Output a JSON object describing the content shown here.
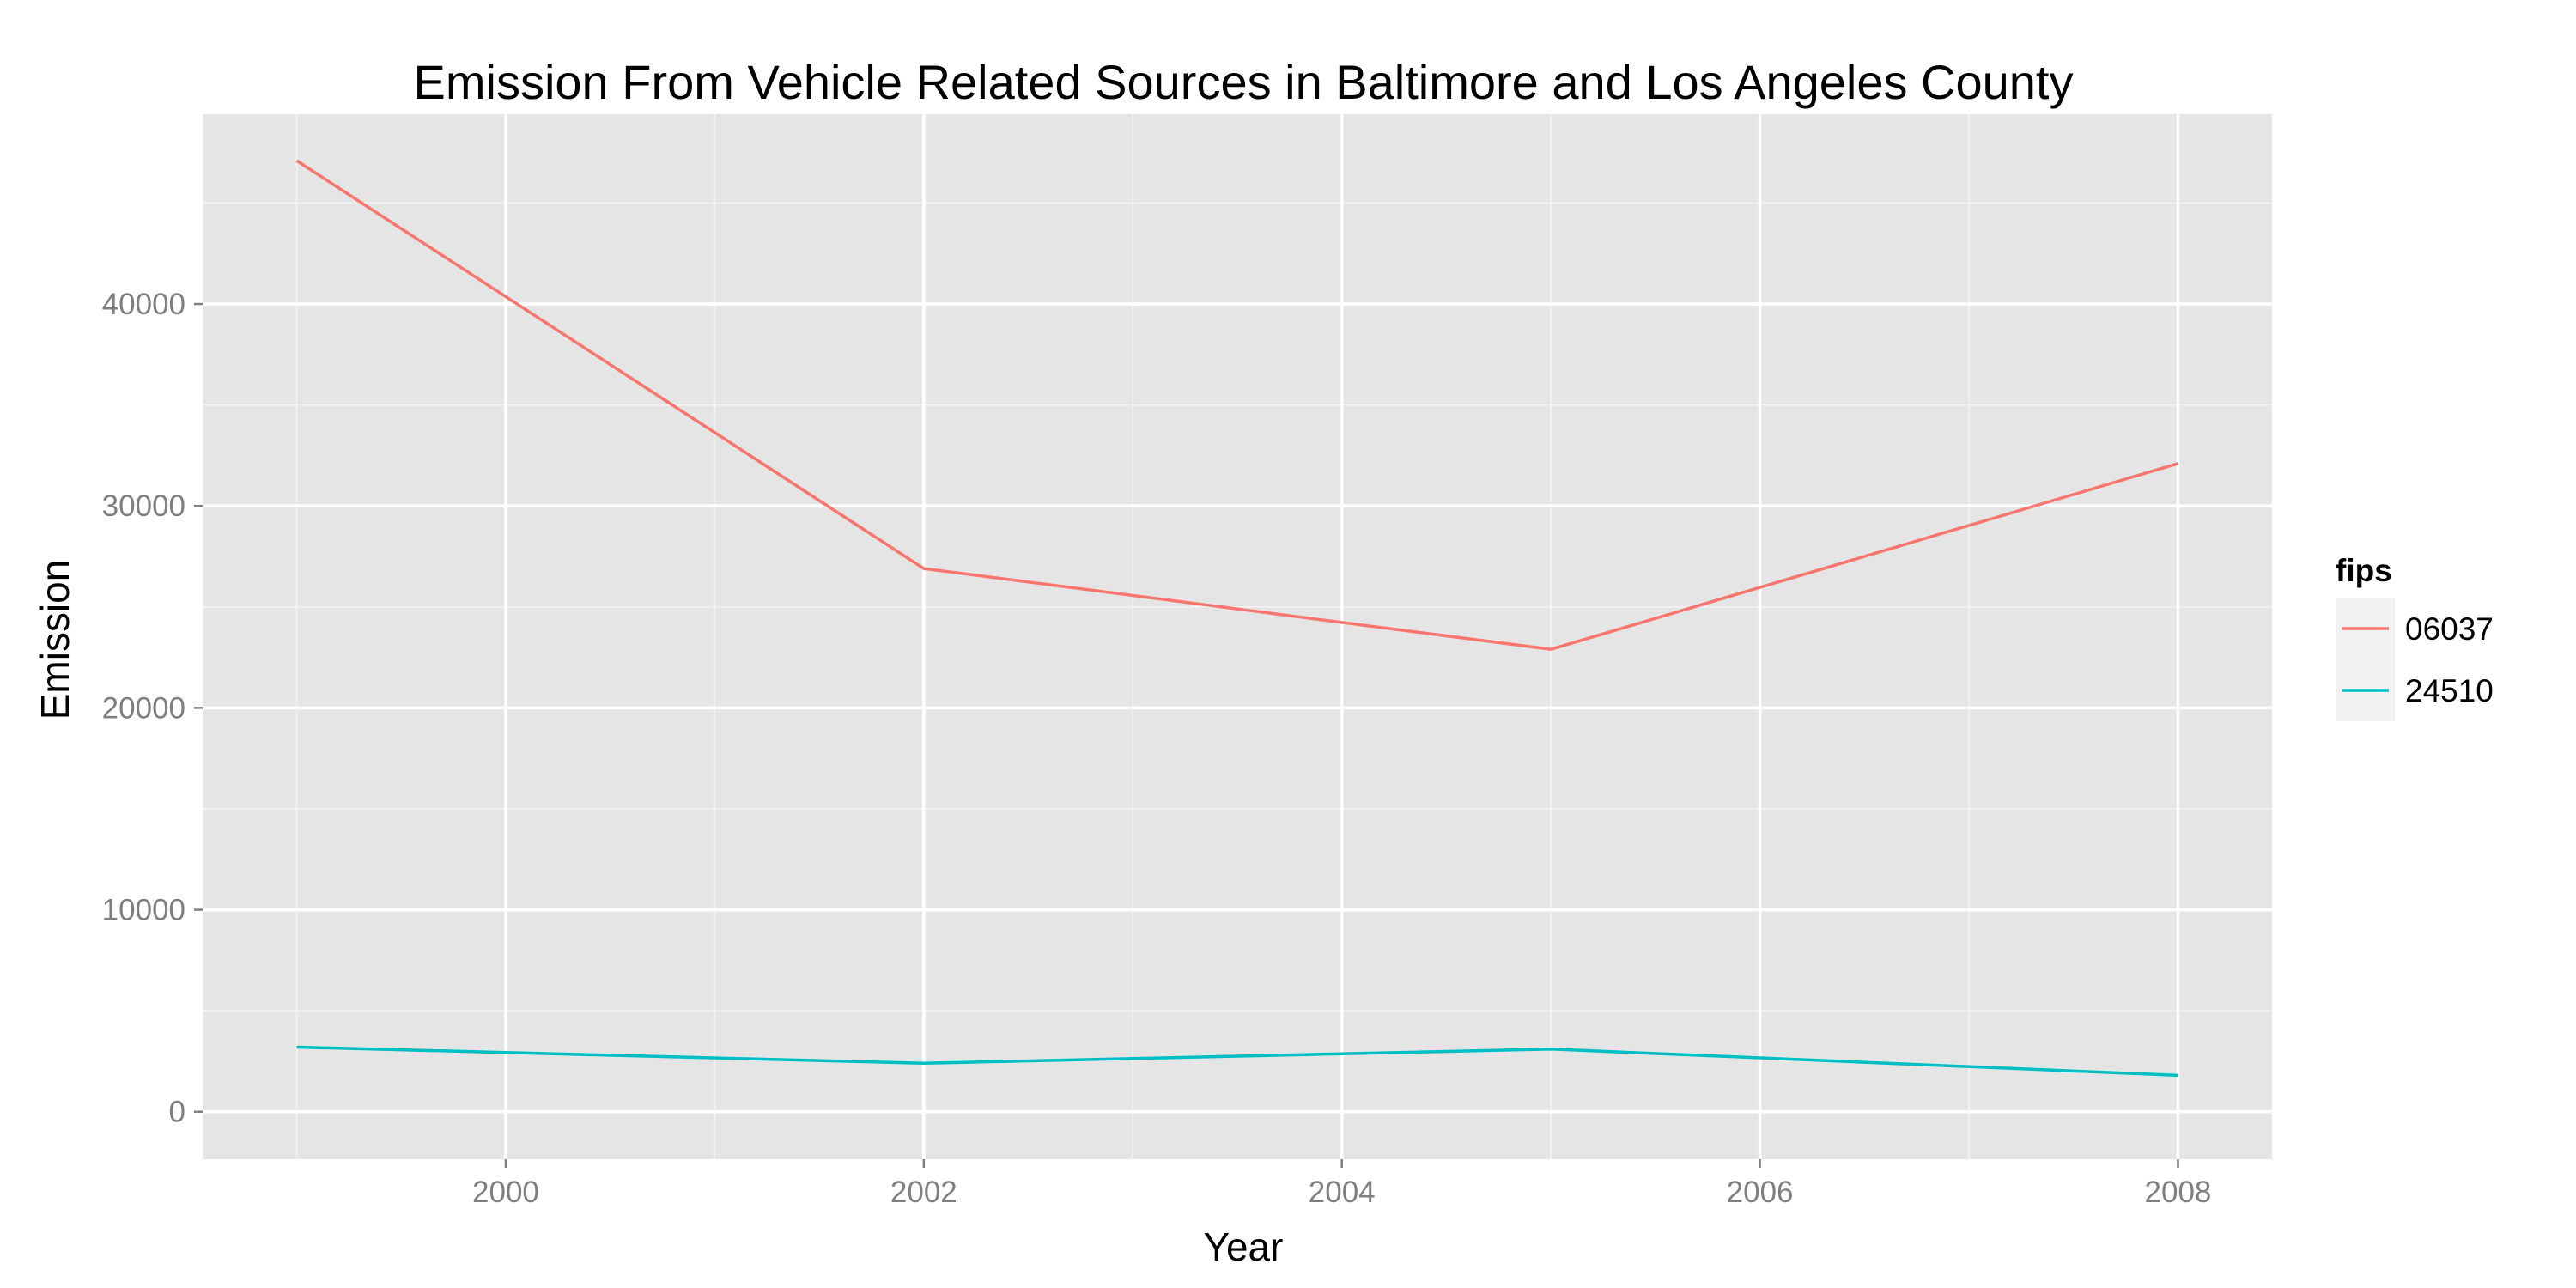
{
  "chart_data": {
    "type": "line",
    "title": "Emission From Vehicle Related Sources in Baltimore and Los Angeles County",
    "xlabel": "Year",
    "ylabel": "Emission",
    "x": [
      1999,
      2002,
      2005,
      2008
    ],
    "xlim": [
      1998.55,
      2008.45
    ],
    "ylim": [
      -2350,
      49400
    ],
    "x_major_ticks": [
      2000,
      2002,
      2004,
      2006,
      2008
    ],
    "x_minor_ticks": [
      1999,
      2001,
      2003,
      2005,
      2007
    ],
    "y_major_ticks": [
      0,
      10000,
      20000,
      30000,
      40000
    ],
    "y_minor_ticks": [
      5000,
      15000,
      25000,
      35000,
      45000
    ],
    "x_tick_labels": [
      "2000",
      "2002",
      "2004",
      "2006",
      "2008"
    ],
    "y_tick_labels": [
      "0",
      "10000",
      "20000",
      "30000",
      "40000"
    ],
    "grid": true,
    "legend": {
      "title": "fips",
      "placement": "right"
    },
    "series": [
      {
        "name": "06037",
        "color": "#F8766D",
        "values": [
          47100,
          26900,
          22900,
          32100
        ]
      },
      {
        "name": "24510",
        "color": "#00BFC4",
        "values": [
          3200,
          2400,
          3100,
          1800
        ]
      }
    ]
  }
}
